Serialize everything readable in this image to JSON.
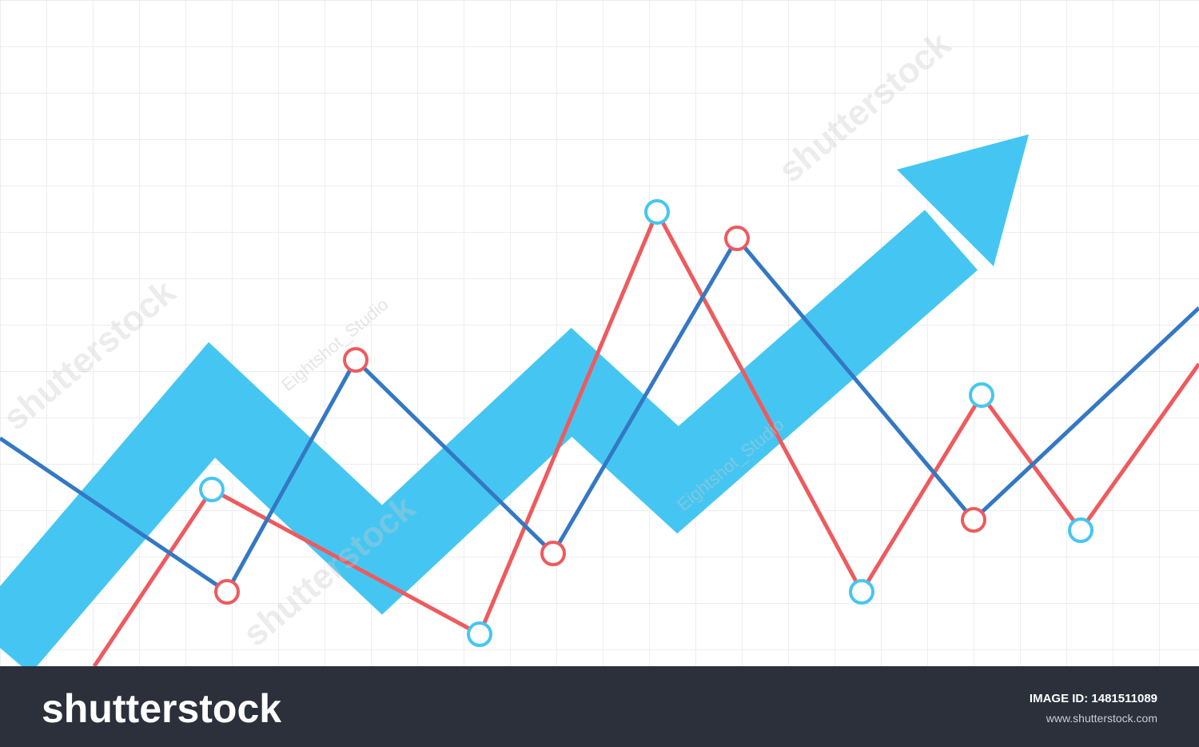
{
  "watermarks": [
    "shutterstock",
    "Eightshot_Studio",
    "shutterstock",
    "Eightshot_Studio",
    "shutterstock"
  ],
  "footer": {
    "logo": "shutterstock",
    "image_id": "IMAGE ID: 1481511089",
    "url": "www.shutterstock.com"
  }
}
